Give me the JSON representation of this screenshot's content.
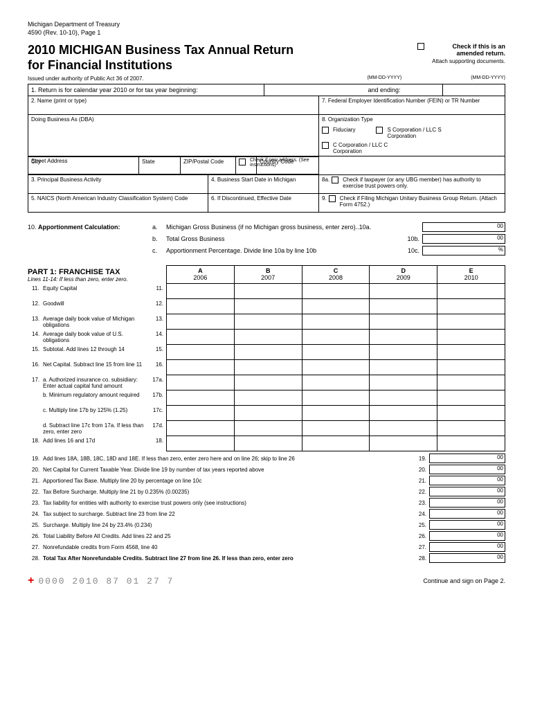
{
  "header": {
    "dept": "Michigan Department of Treasury",
    "rev": "4590 (Rev. 10-10), Page 1",
    "title1": "2010 MICHIGAN Business Tax Annual Return",
    "title2": "for Financial Institutions",
    "amended_label": "Check if this is an amended return.",
    "attach": "Attach supporting documents.",
    "issued": "Issued under authority of Public Act 36 of 2007.",
    "date_fmt1": "(MM-DD-YYYY)",
    "date_fmt2": "(MM-DD-YYYY)"
  },
  "line1": {
    "num": "1.",
    "label": "Return is for calendar year 2010 or for tax year beginning:",
    "ending": "and ending:"
  },
  "fields": {
    "name": "2. Name (print or type)",
    "fein": "7. Federal Employer Identification Number (FEIN) or TR Number",
    "dba": "Doing Business As (DBA)",
    "orgtype": "8. Organization Type",
    "street": "Street Address",
    "newaddr": "Check if new address. (See instructions)",
    "city": "City",
    "state": "State",
    "zip": "ZIP/Postal Code",
    "country": "Country Code",
    "fiduciary": "Fiduciary",
    "scorp": "S Corporation / LLC S Corporation",
    "ccorp": "C Corporation / LLC C Corporation",
    "activity": "3. Principal Business Activity",
    "startdate": "4. Business Start Date in Michigan",
    "8a": "8a.",
    "8a_text": "Check if taxpayer (or any UBG member) has authority to exercise trust powers only.",
    "naics": "5. NAICS (North American Industry Classification System) Code",
    "discontinued": "6. If Discontinued, Effective Date",
    "9": "9.",
    "9_text": "Check if Filing Michigan Unitary Business Group Return. (Attach Form 4752.)"
  },
  "section10": {
    "num": "10.",
    "title": "Apportionment Calculation:",
    "a": "a.",
    "a_text": "Michigan Gross Business (if no Michigan gross business, enter zero)..10a.",
    "b": "b.",
    "b_text": "Total Gross Business",
    "b_num": "10b.",
    "c": "c.",
    "c_text": "Apportionment Percentage. Divide line 10a by line 10b",
    "c_num": "10c.",
    "suffix_00": "00",
    "suffix_pct": "%"
  },
  "part1": {
    "title": "PART 1: FRANCHISE TAX",
    "note": "Lines 11-14: If less than zero, enter zero.",
    "cols": [
      {
        "letter": "A",
        "year": "2006"
      },
      {
        "letter": "B",
        "year": "2007"
      },
      {
        "letter": "C",
        "year": "2008"
      },
      {
        "letter": "D",
        "year": "2009"
      },
      {
        "letter": "E",
        "year": "2010"
      }
    ],
    "rows": [
      {
        "num": "11.",
        "desc": "Equity Capital",
        "rnum": "11."
      },
      {
        "num": "12.",
        "desc": "Goodwill",
        "rnum": "12."
      },
      {
        "num": "13.",
        "desc": "Average daily book value of Michigan obligations",
        "rnum": "13."
      },
      {
        "num": "14.",
        "desc": "Average daily book value of U.S. obligations",
        "rnum": "14."
      },
      {
        "num": "15.",
        "desc": "Subtotal. Add lines 12 through 14",
        "rnum": "15."
      },
      {
        "num": "16.",
        "desc": "Net Capital. Subtract line 15 from line 11",
        "rnum": "16."
      },
      {
        "num": "17.",
        "desc": "a. Authorized insurance co. subsidiary: Enter actual capital fund amount",
        "rnum": "17a."
      },
      {
        "num": "",
        "desc": "b. Minimum regulatory amount required",
        "rnum": "17b."
      },
      {
        "num": "",
        "desc": "c. Multiply line 17b by 125% (1.25)",
        "rnum": "17c."
      },
      {
        "num": "",
        "desc": "d. Subtract line 17c from 17a. If less than zero, enter zero",
        "rnum": "17d."
      },
      {
        "num": "18.",
        "desc": "Add lines 16 and 17d",
        "rnum": "18."
      }
    ]
  },
  "bottom": [
    {
      "num": "19.",
      "desc": "Add lines 18A, 18B, 18C, 18D and 18E. If less than zero, enter zero here and on line 26; skip to line 26",
      "rnum": "19.",
      "suffix": "00"
    },
    {
      "num": "20.",
      "desc": "Net Capital for Current Taxable Year. Divide line 19 by number of tax years reported above",
      "rnum": "20.",
      "suffix": "00"
    },
    {
      "num": "21.",
      "desc": "Apportioned Tax Base. Multiply line 20 by percentage on line 10c",
      "rnum": "21.",
      "suffix": "00"
    },
    {
      "num": "22.",
      "desc": "Tax Before Surcharge. Multiply line 21 by 0.235% (0.00235)",
      "rnum": "22.",
      "suffix": "00"
    },
    {
      "num": "23.",
      "desc": "Tax liability for entities with authority to exercise trust powers only (see instructions)",
      "rnum": "23.",
      "suffix": "00"
    },
    {
      "num": "24.",
      "desc": "Tax subject to surcharge. Subtract line 23 from line 22",
      "rnum": "24.",
      "suffix": "00"
    },
    {
      "num": "25.",
      "desc": "Surcharge. Multiply line 24 by 23.4% (0.234)",
      "rnum": "25.",
      "suffix": "00"
    },
    {
      "num": "26.",
      "desc": "Total Liability Before All Credits. Add lines 22 and 25",
      "rnum": "26.",
      "suffix": "00"
    },
    {
      "num": "27.",
      "desc": "Nonrefundable credits from Form 4568, line 40",
      "rnum": "27.",
      "suffix": "00"
    },
    {
      "num": "28.",
      "desc": "Total Tax After Nonrefundable Credits. Subtract line 27 from line 26. If less than zero, enter zero",
      "rnum": "28.",
      "suffix": "00",
      "bold": true
    }
  ],
  "footer": {
    "code": "0000 2010 87 01 27 7",
    "cont": "Continue and sign on Page 2."
  }
}
